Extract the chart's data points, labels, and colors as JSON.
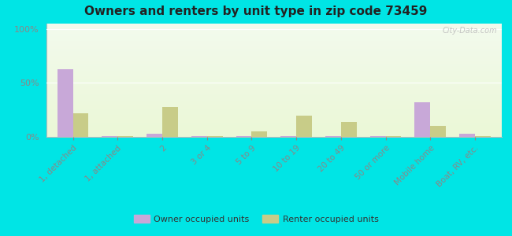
{
  "title": "Owners and renters by unit type in zip code 73459",
  "categories": [
    "1, detached",
    "1, attached",
    "2",
    "3 or 4",
    "5 to 9",
    "10 to 19",
    "20 to 49",
    "50 or more",
    "Mobile home",
    "Boat, RV, etc."
  ],
  "owner_values": [
    63,
    1,
    3,
    0.5,
    0.5,
    0.5,
    0.5,
    0.5,
    32,
    3
  ],
  "renter_values": [
    22,
    1,
    28,
    1,
    5,
    20,
    14,
    0.5,
    10,
    1
  ],
  "owner_color": "#c8a8d8",
  "renter_color": "#c8cc88",
  "outer_bg": "#00e5e5",
  "ylabel_ticks": [
    0,
    50,
    100
  ],
  "ylabel_labels": [
    "0%",
    "50%",
    "100%"
  ],
  "ylim": [
    0,
    105
  ],
  "legend_labels": [
    "Owner occupied units",
    "Renter occupied units"
  ],
  "watermark": "City-Data.com",
  "title_fontsize": 11
}
